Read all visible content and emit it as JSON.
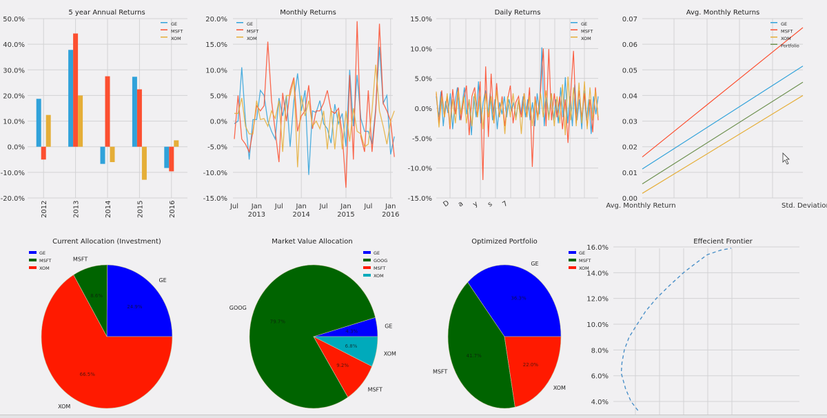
{
  "colors": {
    "GE": "#30a2da",
    "MSFT": "#fc4f30",
    "XOM": "#e5ae38",
    "Portfolio": "#6d904f",
    "pie_GE": "#0000ff",
    "pie_MSFT": "#006400",
    "pie_GOOG": "#006400",
    "pie_XOM_current": "#ff1a00",
    "pie_MSFT_market": "#ff1a00",
    "pie_XOM_market": "#00aabb",
    "pie_XOM_opt": "#ff1a00",
    "frontier": "#4a90c8",
    "grid": "#d2d2d4",
    "background": "#f1f0f2"
  },
  "chart_data": [
    {
      "type": "bar",
      "title": "5 year Annual Returns",
      "categories": [
        "2012",
        "2013",
        "2014",
        "2015",
        "2016"
      ],
      "series": [
        {
          "name": "GE",
          "values": [
            18.7,
            37.8,
            -6.7,
            27.3,
            -8.3
          ]
        },
        {
          "name": "MSFT",
          "values": [
            -5.0,
            44.2,
            27.5,
            22.4,
            -9.6
          ]
        },
        {
          "name": "XOM",
          "values": [
            12.4,
            20.0,
            -6.0,
            -12.9,
            2.5
          ]
        }
      ],
      "ylim": [
        -20,
        50
      ],
      "yticks": [
        "-20.0%",
        "-10.0%",
        "0.0%",
        "10.0%",
        "20.0%",
        "30.0%",
        "40.0%",
        "50.0%"
      ],
      "legend": "top-right",
      "grid": true
    },
    {
      "type": "line",
      "title": "Monthly Returns",
      "x_start": "Jul 2012",
      "x_end": "Feb 2016",
      "x_frequency": "monthly",
      "xticks": [
        {
          "month": "Jul 2012",
          "label": "Jul",
          "year": ""
        },
        {
          "month": "Jan 2013",
          "label": "Jan",
          "year": "2013"
        },
        {
          "month": "Jul 2013",
          "label": "Jul",
          "year": ""
        },
        {
          "month": "Jan 2014",
          "label": "Jan",
          "year": "2014"
        },
        {
          "month": "Jul 2014",
          "label": "Jul",
          "year": ""
        },
        {
          "month": "Jan 2015",
          "label": "Jan",
          "year": "2015"
        },
        {
          "month": "Jul 2015",
          "label": "Jul",
          "year": ""
        },
        {
          "month": "Jan 2016",
          "label": "Jan",
          "year": "2016"
        }
      ],
      "series": [
        {
          "name": "GE",
          "values": [
            -0.5,
            0,
            10.5,
            0,
            -7.5,
            0.3,
            0.3,
            6,
            5,
            0,
            -2,
            -3.5,
            4.5,
            1,
            5,
            -5,
            4,
            9.3,
            2,
            6,
            -10.5,
            2,
            1.7,
            4,
            -0.5,
            -1.5,
            -4.3,
            3.3,
            -0.5,
            1.5,
            -5,
            10,
            -1,
            9,
            0.5,
            -2,
            -2,
            -4.5,
            2.5,
            14.5,
            3.5,
            5,
            -6.5,
            -3
          ]
        },
        {
          "name": "MSFT",
          "values": [
            -3.5,
            5,
            -3.5,
            -4.5,
            -6,
            -2,
            3,
            2,
            3,
            15.5,
            4,
            -2,
            -8,
            5.5,
            0,
            6,
            8.5,
            -2,
            1,
            2,
            7,
            -1.5,
            2,
            2,
            3.5,
            6,
            2,
            1.5,
            2.5,
            -2.5,
            -13,
            9,
            -7.5,
            19.5,
            -3,
            -6,
            6,
            -6,
            2,
            19,
            3.5,
            2,
            0,
            -7
          ]
        },
        {
          "name": "XOM",
          "values": [
            1.5,
            1.5,
            4.5,
            -1,
            -2.5,
            -2.5,
            4,
            0.3,
            0.5,
            -1,
            2,
            0.5,
            4,
            -6,
            5,
            5,
            8,
            -9,
            5,
            1,
            4,
            -1,
            0,
            -1.5,
            2,
            -5.5,
            2.5,
            -5.5,
            2,
            -5.5,
            2,
            -4,
            2.5,
            -2,
            -2.5,
            -5,
            -4.5,
            2,
            11,
            2,
            -1,
            -4.5,
            0,
            2
          ]
        }
      ],
      "ylim": [
        -15,
        20
      ],
      "yticks": [
        "-15.0%",
        "-10.0%",
        "-5.0%",
        "0.0%",
        "5.0%",
        "10.0%",
        "15.0%",
        "20.0%"
      ],
      "legend": "top-left",
      "grid": true
    },
    {
      "type": "line",
      "title": "Daily Returns",
      "xticks": [
        "D",
        "a",
        "y",
        "s",
        "7"
      ],
      "series": [
        {
          "name": "GE",
          "values": [
            2,
            -1.5,
            2.8,
            -3,
            1.2,
            -0.8,
            2.5,
            -3.5,
            1,
            3.5,
            -2,
            0.5,
            3.5,
            -1,
            1.5,
            -4.5,
            2,
            -1.5,
            4.5,
            -2.5,
            1,
            3,
            -1,
            2.5,
            -2,
            1.5,
            -3.5,
            1,
            -1,
            2,
            -1.5,
            1.5,
            -0.5,
            1,
            -1.5,
            1.2,
            -1,
            2,
            -1.5,
            1.5,
            -2,
            1,
            -3,
            2.5,
            -1,
            10.2,
            -3,
            2,
            -1.5,
            2.5,
            -2,
            1.5,
            -2.5,
            3.5,
            -1.5,
            5.2,
            -2.5,
            2,
            -3,
            4,
            -2,
            1.5,
            -3.5,
            3,
            -2,
            1.5,
            -4.3,
            2,
            -1,
            2
          ]
        },
        {
          "name": "MSFT",
          "values": [
            2.5,
            -2.5,
            3,
            -1.5,
            2,
            -3.5,
            3.2,
            -1,
            3.5,
            -2,
            1.5,
            3.8,
            -4.5,
            2,
            3.5,
            -1.5,
            4.5,
            -12,
            7,
            -4.8,
            5.8,
            -2.5,
            4.2,
            -1.5,
            2,
            -3,
            1.5,
            3.8,
            -2.5,
            1,
            2,
            -1.5,
            2.5,
            -1.5,
            3.5,
            -9.8,
            2,
            -1.5,
            3,
            10,
            -3,
            9.9,
            -2,
            2.5,
            -1.5,
            2,
            -3.5,
            1.5,
            -5.8,
            2.5,
            9.6,
            -2.5,
            3,
            -1.5,
            2.5,
            -3,
            1.5,
            -4,
            3.5,
            -2
          ]
        },
        {
          "name": "XOM",
          "values": [
            2.8,
            -3.2,
            2,
            -1.5,
            2.5,
            -3,
            1.5,
            -2.5,
            3,
            -1,
            2,
            -2.5,
            1.5,
            -3,
            2.5,
            -1.5,
            2,
            -3.5,
            2.5,
            -1.5,
            2,
            -2.5,
            3,
            -1.5,
            1.5,
            -4.3,
            2,
            -1.5,
            2.5,
            -2,
            1.5,
            -4.3,
            2.5,
            -1.5,
            2,
            -3,
            1.5,
            -2,
            2.5,
            -1.5,
            3,
            -2,
            2.5,
            -3,
            2,
            -2.5,
            4,
            -4.5,
            5.3,
            -2,
            3.5,
            -3,
            4.3,
            -2.5,
            4.5,
            -3.5,
            3.5,
            -2,
            3,
            -1.5
          ]
        }
      ],
      "ylim": [
        -15,
        15
      ],
      "yticks": [
        "-15.0%",
        "-10.0%",
        "-5.0%",
        "0.0%",
        "5.0%",
        "10.0%",
        "15.0%"
      ],
      "legend": "top-right",
      "grid": true
    },
    {
      "type": "line",
      "title": "Avg. Monthly Returns",
      "categories": [
        "Avg. Monthly Return",
        "Std. Deviation"
      ],
      "series": [
        {
          "name": "GE",
          "values": [
            0.0113,
            0.0515
          ]
        },
        {
          "name": "MSFT",
          "values": [
            0.016,
            0.0665
          ]
        },
        {
          "name": "XOM",
          "values": [
            0.0018,
            0.04
          ]
        },
        {
          "name": "Portfolio",
          "values": [
            0.0055,
            0.0452
          ]
        }
      ],
      "ylim": [
        0,
        0.07
      ],
      "yticks": [
        "0.00",
        "0.01",
        "0.02",
        "0.03",
        "0.04",
        "0.05",
        "0.06",
        "0.07"
      ],
      "legend": "top-right",
      "grid": true
    },
    {
      "type": "pie",
      "title": "Current Allocation (Investment)",
      "labels": [
        "GE",
        "MSFT",
        "XOM"
      ],
      "values": [
        24.9,
        8.6,
        66.5
      ],
      "pct_labels": [
        "24.9%",
        "8.6%",
        "66.5%"
      ],
      "legend": "top-left"
    },
    {
      "type": "pie",
      "title": "Market Value Allocation",
      "labels": [
        "GE",
        "GOOG",
        "MSFT",
        "XOM"
      ],
      "values": [
        4.3,
        79.7,
        9.2,
        6.8
      ],
      "pct_labels": [
        "4.3%",
        "79.7%",
        "9.2%",
        "6.8%"
      ],
      "legend": "top-right"
    },
    {
      "type": "pie",
      "title": "Optimized Portfolio",
      "labels": [
        "GE",
        "MSFT",
        "XOM"
      ],
      "values": [
        36.3,
        41.7,
        22.0
      ],
      "pct_labels": [
        "36.3%",
        "41.7%",
        "22.0%"
      ],
      "legend": "top-right"
    },
    {
      "type": "line",
      "title": "Effecient Frontier",
      "style": "dashed",
      "points": [
        [
          1.03,
          3.3
        ],
        [
          0.74,
          4.0
        ],
        [
          0.51,
          5.0
        ],
        [
          0.33,
          6.2
        ],
        [
          0.36,
          7.0
        ],
        [
          0.46,
          8.0
        ],
        [
          0.66,
          9.0
        ],
        [
          1.0,
          10.0
        ],
        [
          1.35,
          11.0
        ],
        [
          1.8,
          12.0
        ],
        [
          2.35,
          13.0
        ],
        [
          2.94,
          14.0
        ],
        [
          3.5,
          14.8
        ],
        [
          3.94,
          15.4
        ],
        [
          4.5,
          15.75
        ],
        [
          4.94,
          15.9
        ]
      ],
      "ylim": [
        2.9,
        16.2
      ],
      "xlim": [
        0,
        7.8
      ],
      "yticks": [
        "4.0%",
        "6.0%",
        "8.0%",
        "10.0%",
        "12.0%",
        "14.0%",
        "16.0%"
      ],
      "grid": true
    }
  ]
}
